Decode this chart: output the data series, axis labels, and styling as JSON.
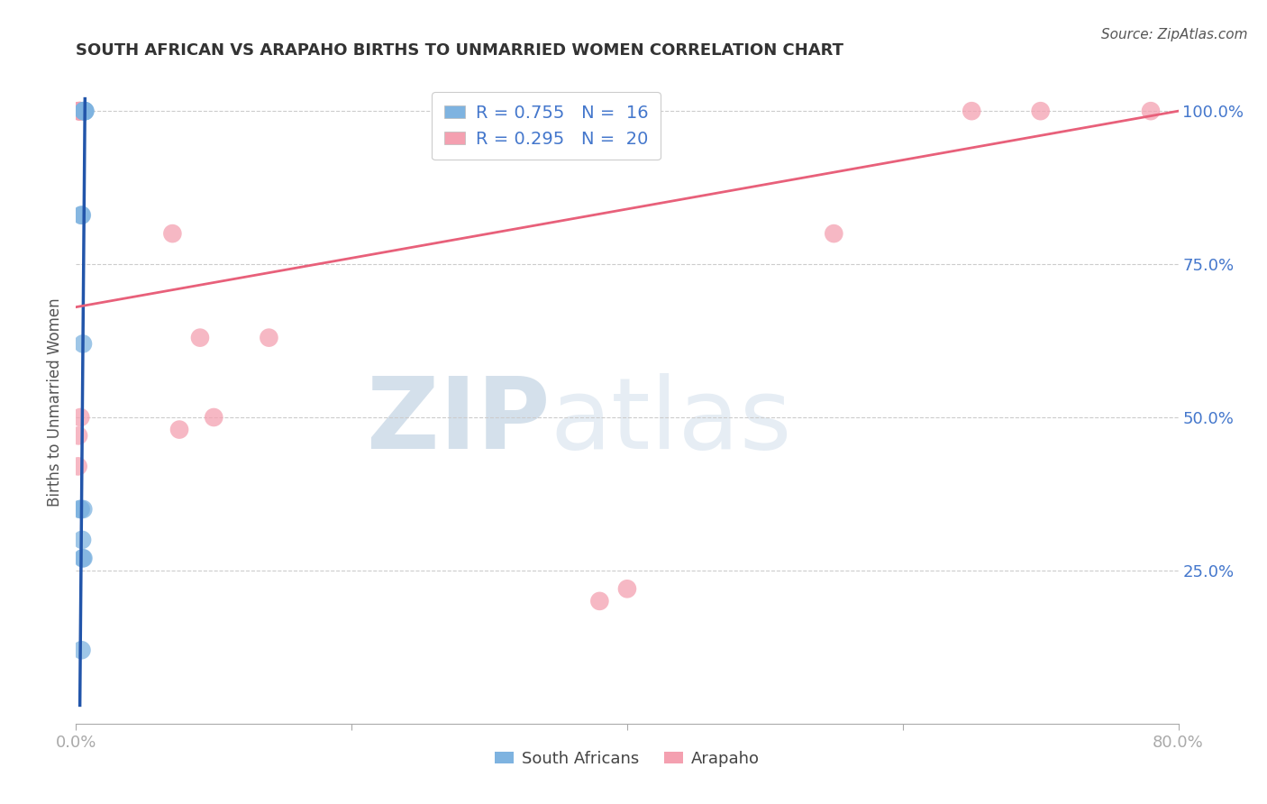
{
  "title": "SOUTH AFRICAN VS ARAPAHO BIRTHS TO UNMARRIED WOMEN CORRELATION CHART",
  "source": "Source: ZipAtlas.com",
  "ylabel": "Births to Unmarried Women",
  "xlim": [
    0.0,
    80.0
  ],
  "ylim": [
    0.0,
    105.0
  ],
  "blue_R": 0.755,
  "blue_N": 16,
  "pink_R": 0.295,
  "pink_N": 20,
  "blue_color": "#7EB3E0",
  "pink_color": "#F4A0B0",
  "blue_line_color": "#2255AA",
  "pink_line_color": "#E8607A",
  "south_african_x": [
    0.55,
    0.55,
    0.6,
    0.62,
    0.65,
    0.65,
    0.38,
    0.42,
    0.5,
    0.28,
    0.35,
    0.52,
    0.44,
    0.47,
    0.53,
    0.4
  ],
  "south_african_y": [
    100,
    100,
    100,
    100,
    100,
    100,
    83,
    83,
    62,
    35,
    35,
    35,
    30,
    27,
    27,
    12
  ],
  "arapaho_x": [
    0.15,
    0.2,
    0.25,
    0.3,
    0.3,
    0.3,
    0.15,
    0.18,
    0.32,
    9.0,
    10.0,
    7.5,
    7.0,
    14.0,
    40.0,
    55.0,
    65.0,
    70.0,
    78.0,
    38.0
  ],
  "arapaho_y": [
    100,
    100,
    100,
    100,
    100,
    100,
    42,
    47,
    50,
    63,
    50,
    48,
    80,
    63,
    22,
    80,
    100,
    100,
    100,
    20
  ],
  "blue_line_x": [
    0.28,
    0.65
  ],
  "blue_line_y": [
    3.0,
    102.0
  ],
  "pink_line_x": [
    0.0,
    80.0
  ],
  "pink_line_y": [
    68.0,
    100.0
  ],
  "watermark_zip": "ZIP",
  "watermark_atlas": "atlas",
  "background_color": "#ffffff",
  "grid_color": "#cccccc",
  "title_color": "#333333",
  "axis_label_color": "#555555",
  "tick_color": "#4477CC",
  "legend_blue_label": "R = 0.755   N =  16",
  "legend_pink_label": "R = 0.295   N =  20",
  "legend_blue_text": "R = 0.755",
  "legend_blue_n": "N = 16",
  "legend_pink_text": "R = 0.295",
  "legend_pink_n": "N = 20"
}
